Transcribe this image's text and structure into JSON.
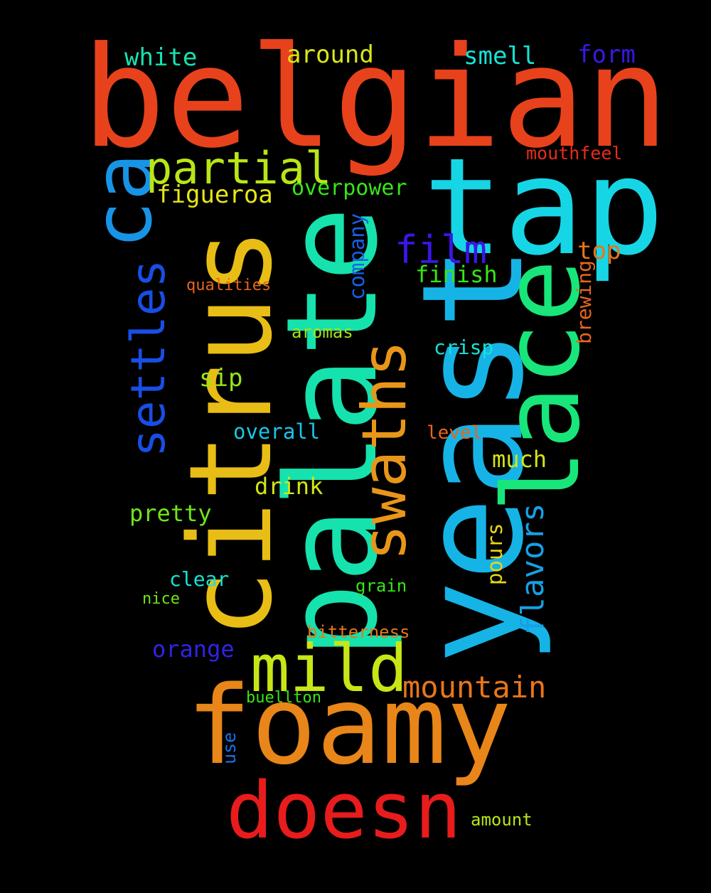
{
  "cloud": {
    "background": "#000000",
    "words": [
      {
        "text": "belgian",
        "color": "#E8421C",
        "rotate": false
      },
      {
        "text": "foamy",
        "color": "#E8861A",
        "rotate": false
      },
      {
        "text": "yeast",
        "color": "#16B4E6",
        "rotate": true
      },
      {
        "text": "palate",
        "color": "#16E2AD",
        "rotate": true
      },
      {
        "text": "citrus",
        "color": "#E8BE16",
        "rotate": true
      },
      {
        "text": "tap",
        "color": "#16D6E6",
        "rotate": false
      },
      {
        "text": "lace",
        "color": "#18E67A",
        "rotate": true
      },
      {
        "text": "doesn",
        "color": "#E81C1C",
        "rotate": false
      },
      {
        "text": "ca",
        "color": "#1894E6",
        "rotate": true
      },
      {
        "text": "mild",
        "color": "#C8E616",
        "rotate": false
      },
      {
        "text": "swaths",
        "color": "#E8961A",
        "rotate": true
      },
      {
        "text": "settles",
        "color": "#184EE6",
        "rotate": true
      },
      {
        "text": "partial",
        "color": "#B8E616",
        "rotate": false
      },
      {
        "text": "film",
        "color": "#3A16E6",
        "rotate": false
      },
      {
        "text": "mountain",
        "color": "#E8761A",
        "rotate": false
      },
      {
        "text": "flavors",
        "color": "#16A0E6",
        "rotate": true
      },
      {
        "text": "white",
        "color": "#16E2B0",
        "rotate": false
      },
      {
        "text": "around",
        "color": "#D8E616",
        "rotate": false
      },
      {
        "text": "smell",
        "color": "#16E2D6",
        "rotate": false
      },
      {
        "text": "form",
        "color": "#3A16E6",
        "rotate": false
      },
      {
        "text": "figueroa",
        "color": "#E6E616",
        "rotate": false
      },
      {
        "text": "overpower",
        "color": "#36E616",
        "rotate": false
      },
      {
        "text": "company",
        "color": "#1860E6",
        "rotate": true
      },
      {
        "text": "top",
        "color": "#E8761A",
        "rotate": false
      },
      {
        "text": "finish",
        "color": "#36E616",
        "rotate": false
      },
      {
        "text": "brewing",
        "color": "#E8661A",
        "rotate": true
      },
      {
        "text": "mouthfeel",
        "color": "#E82C1C",
        "rotate": false
      },
      {
        "text": "qualities",
        "color": "#E8661A",
        "rotate": false
      },
      {
        "text": "aromas",
        "color": "#A0E616",
        "rotate": false
      },
      {
        "text": "crisp",
        "color": "#16E2D6",
        "rotate": false
      },
      {
        "text": "sip",
        "color": "#96E616",
        "rotate": false
      },
      {
        "text": "overall",
        "color": "#16C8E6",
        "rotate": false
      },
      {
        "text": "level",
        "color": "#E8661A",
        "rotate": false
      },
      {
        "text": "much",
        "color": "#D2E616",
        "rotate": false
      },
      {
        "text": "drink",
        "color": "#D2E616",
        "rotate": false
      },
      {
        "text": "pretty",
        "color": "#6EE616",
        "rotate": false
      },
      {
        "text": "pours",
        "color": "#E6D616",
        "rotate": true
      },
      {
        "text": "clear",
        "color": "#16E2D6",
        "rotate": false
      },
      {
        "text": "grain",
        "color": "#36E616",
        "rotate": false
      },
      {
        "text": "nice",
        "color": "#6EE616",
        "rotate": false
      },
      {
        "text": "bitterness",
        "color": "#E8761A",
        "rotate": false
      },
      {
        "text": "orange",
        "color": "#2E24E6",
        "rotate": false
      },
      {
        "text": "buellton",
        "color": "#36E616",
        "rotate": false
      },
      {
        "text": "use",
        "color": "#1870E6",
        "rotate": true
      },
      {
        "text": "amount",
        "color": "#B8E616",
        "rotate": false
      }
    ]
  }
}
